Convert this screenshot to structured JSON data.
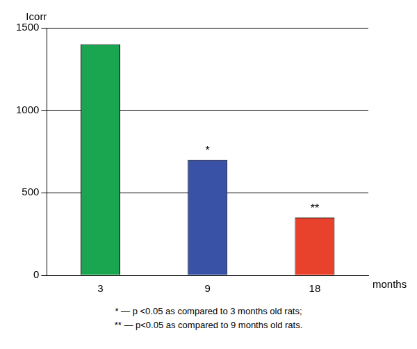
{
  "chart_data": {
    "type": "bar",
    "y_label": "Icorr",
    "x_label": "months",
    "categories": [
      "3",
      "9",
      "18"
    ],
    "values": [
      1400,
      700,
      350
    ],
    "colors": [
      "#1aa650",
      "#3a52a6",
      "#e8412c"
    ],
    "ylim": [
      0,
      1500
    ],
    "yticks": [
      0,
      500,
      1000,
      1500
    ],
    "grid": true,
    "annotations": [
      {
        "category": "9",
        "text": "*"
      },
      {
        "category": "18",
        "text": "**"
      }
    ],
    "notes": [
      "* — p <0.05 as compared to 3 months old rats;",
      "** — p<0.05 as compared to 9 months old rats."
    ]
  }
}
